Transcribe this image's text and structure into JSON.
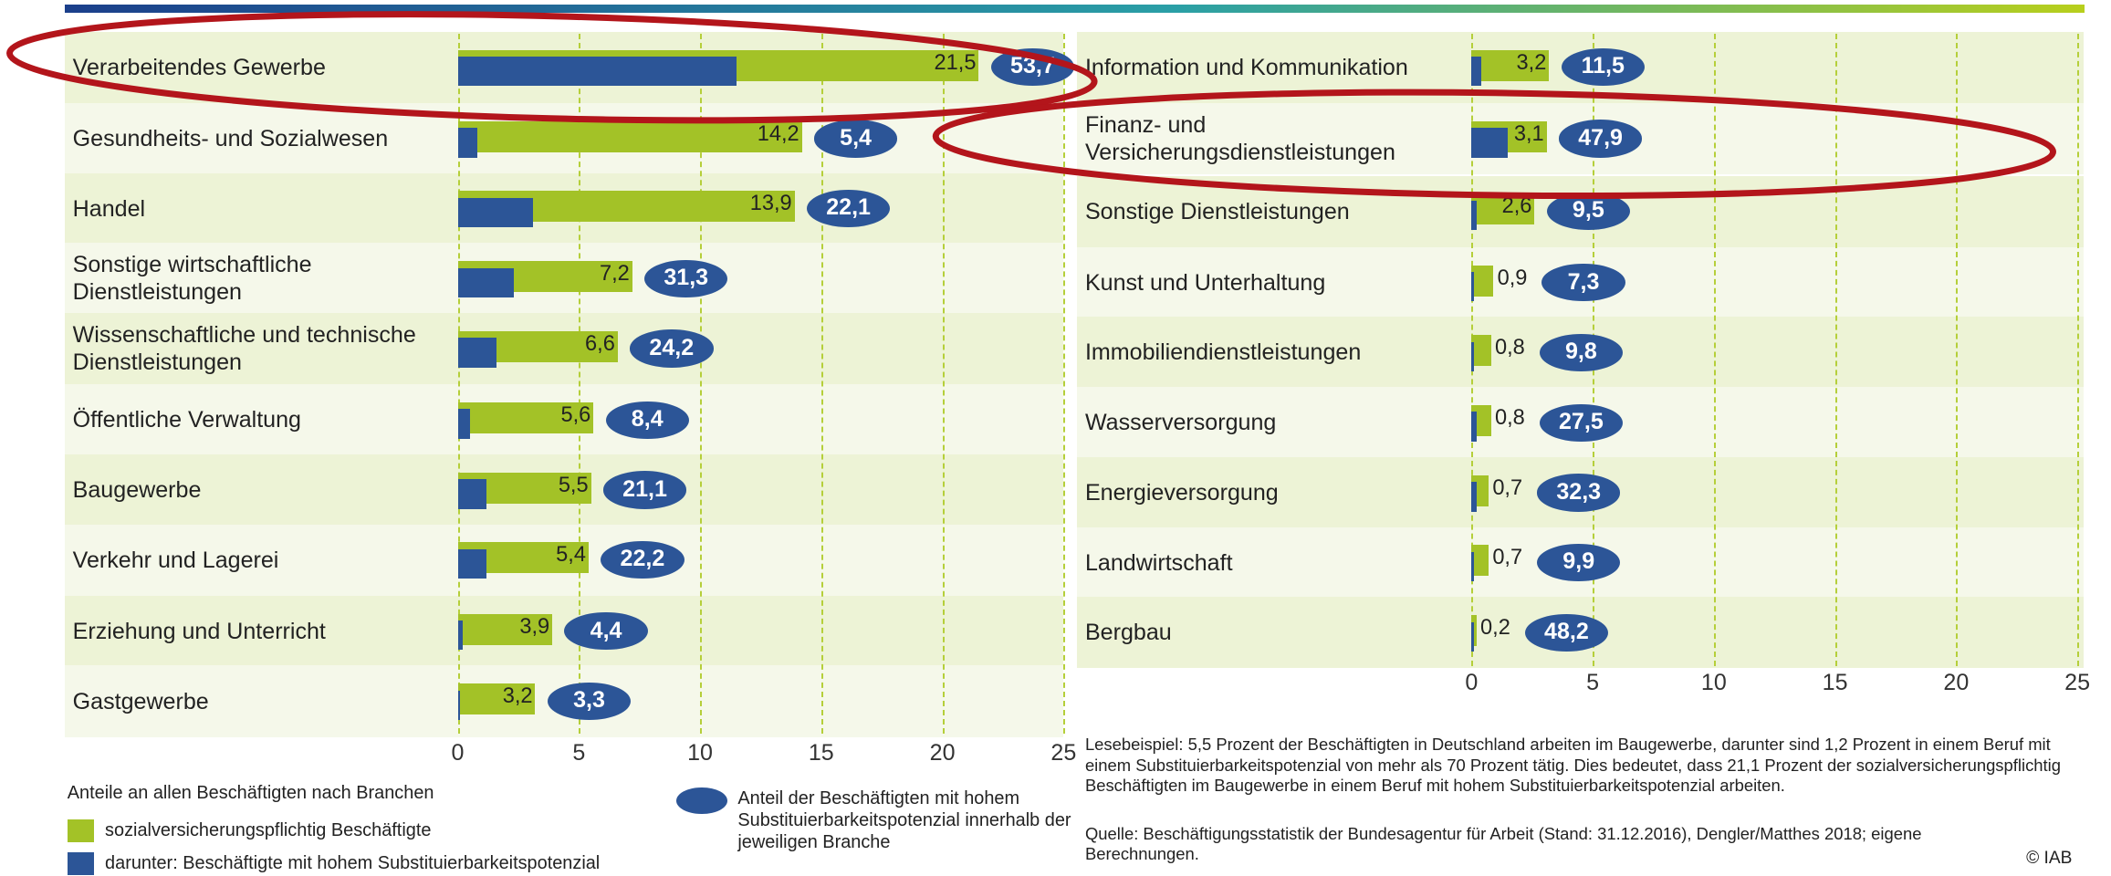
{
  "chart_data": [
    {
      "type": "bar",
      "orientation": "horizontal",
      "categories": [
        "Verarbeitendes Gewerbe",
        "Gesundheits- und Sozialwesen",
        "Handel",
        "Sonstige wirtschaftliche Dienstleistungen",
        "Wissenschaftliche und technische Dienstleistungen",
        "Öffentliche Verwaltung",
        "Baugewerbe",
        "Verkehr und Lagerei",
        "Erziehung und Unterricht",
        "Gastgewerbe"
      ],
      "series": [
        {
          "name": "sozialversicherungspflichtig Beschäftigte",
          "color": "#a3c227",
          "values": [
            21.5,
            14.2,
            13.9,
            7.2,
            6.6,
            5.6,
            5.5,
            5.4,
            3.9,
            3.2
          ],
          "value_labels": [
            "21,5",
            "14,2",
            "13,9",
            "7,2",
            "6,6",
            "5,6",
            "5,5",
            "5,4",
            "3,9",
            "3,2"
          ]
        },
        {
          "name": "darunter: Beschäftigte mit hohem Substituierbarkeitspotenzial",
          "color": "#2c5597",
          "values": [
            11.5,
            0.8,
            3.1,
            2.3,
            1.6,
            0.5,
            1.2,
            1.2,
            0.2,
            0.1
          ]
        },
        {
          "name": "Anteil der Beschäftigten mit hohem Substituierbarkeitspotenzial innerhalb der jeweiligen Branche",
          "color": "#2c5597",
          "values": [
            53.7,
            5.4,
            22.1,
            31.3,
            24.2,
            8.4,
            21.1,
            22.2,
            4.4,
            3.3
          ],
          "value_labels": [
            "53,7",
            "5,4",
            "22,1",
            "31,3",
            "24,2",
            "8,4",
            "21,1",
            "22,2",
            "4,4",
            "3,3"
          ]
        }
      ],
      "xlim": [
        0,
        25
      ],
      "xticks": [
        0,
        5,
        10,
        15,
        20,
        25
      ],
      "grid": true
    },
    {
      "type": "bar",
      "orientation": "horizontal",
      "categories": [
        "Information und Kommunikation",
        "Finanz- und Versicherungsdienstleistungen",
        "Sonstige Dienstleistungen",
        "Kunst und Unterhaltung",
        "Immobiliendienstleistungen",
        "Wasserversorgung",
        "Energieversorgung",
        "Landwirtschaft",
        "Bergbau"
      ],
      "series": [
        {
          "color": "#a3c227",
          "values": [
            3.2,
            3.1,
            2.6,
            0.9,
            0.8,
            0.8,
            0.7,
            0.7,
            0.2
          ],
          "value_labels": [
            "3,2",
            "3,1",
            "2,6",
            "0,9",
            "0,8",
            "0,8",
            "0,7",
            "0,7",
            "0,2"
          ]
        },
        {
          "color": "#2c5597",
          "values": [
            0.4,
            1.5,
            0.2,
            0.1,
            0.1,
            0.2,
            0.2,
            0.1,
            0.1
          ]
        },
        {
          "color": "#2c5597",
          "values": [
            11.5,
            47.9,
            9.5,
            7.3,
            9.8,
            27.5,
            32.3,
            9.9,
            48.2
          ],
          "value_labels": [
            "11,5",
            "47,9",
            "9,5",
            "7,3",
            "9,8",
            "27,5",
            "32,3",
            "9,9",
            "48,2"
          ]
        }
      ],
      "xlim": [
        0,
        25
      ],
      "xticks": [
        0,
        5,
        10,
        15,
        20,
        25
      ],
      "grid": true
    }
  ],
  "legend_title": "Anteile an allen Beschäftigten nach Branchen",
  "note": "Lesebeispiel: 5,5 Prozent der Beschäftigten in Deutschland arbeiten im Baugewerbe, darunter sind 1,2 Prozent in einem Beruf mit einem Substituierbarkeitspotenzial von mehr als 70 Prozent tätig. Dies bedeutet, dass 21,1 Prozent der sozialversicherungspflichtig Beschäftigten im Baugewerbe in einem Beruf mit hohem Substituierbarkeitspotenzial arbeiten.",
  "source": "Quelle: Beschäftigungsstatistik der Bundesagentur für Arbeit (Stand: 31.12.2016), Dengler/Matthes 2018; eigene Berechnungen.",
  "copyright": "© IAB"
}
